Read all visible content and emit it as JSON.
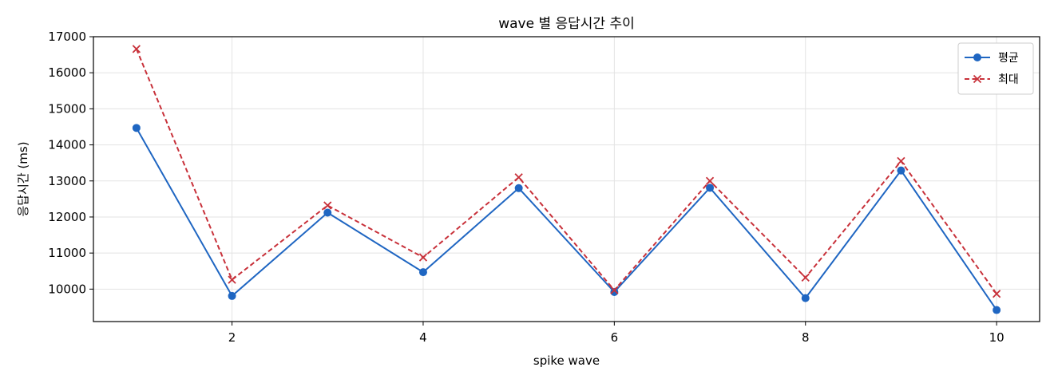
{
  "chart_data": {
    "type": "line",
    "title": "wave 별 응답시간 추이",
    "xlabel": "spike wave",
    "ylabel": "응답시간 (ms)",
    "x": [
      1,
      2,
      3,
      4,
      5,
      6,
      7,
      8,
      9,
      10
    ],
    "xlim": [
      0.55,
      10.45
    ],
    "ylim": [
      9100,
      17000
    ],
    "xticks": [
      2,
      4,
      6,
      8,
      10
    ],
    "yticks": [
      10000,
      11000,
      12000,
      13000,
      14000,
      15000,
      16000,
      17000
    ],
    "grid": true,
    "legend_position": "top-right",
    "series": [
      {
        "name": "평균",
        "color": "#1f66c2",
        "marker": "circle",
        "line_style": "solid",
        "values": [
          14470,
          9810,
          12120,
          10470,
          12800,
          9920,
          12810,
          9750,
          13290,
          9420
        ]
      },
      {
        "name": "최대",
        "color": "#c8313a",
        "marker": "x",
        "line_style": "dashed",
        "values": [
          16660,
          10260,
          12320,
          10880,
          13100,
          9970,
          13000,
          10320,
          13550,
          9870
        ]
      }
    ]
  }
}
